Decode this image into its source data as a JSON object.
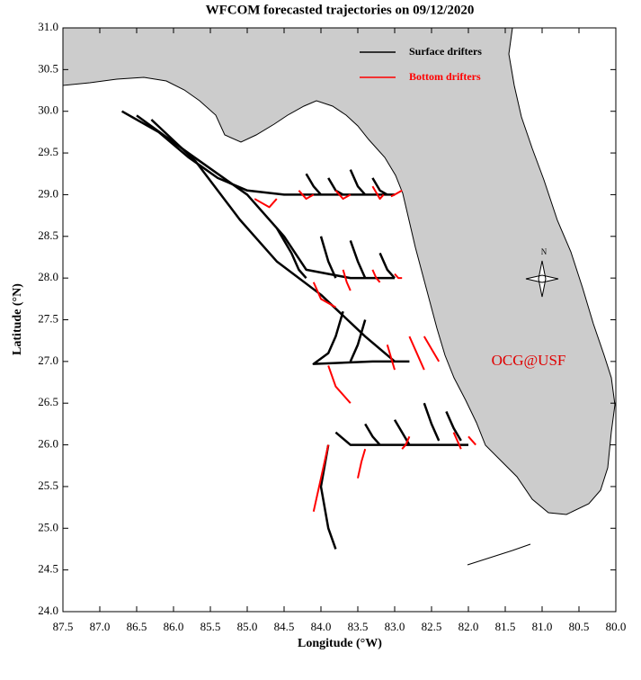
{
  "chart_data": {
    "type": "trajectory",
    "title": "WFCOM forecasted trajectories on 09/12/2020",
    "x_label": "Longitude (°W)",
    "y_label": "Latitude (°N)",
    "annotation": "OCG@USF",
    "compass_label": "N",
    "legend": "upper right",
    "xlim": [
      87.5,
      80.0
    ],
    "ylim": [
      24.0,
      31.0
    ],
    "xticks": [
      87.5,
      {
        "value": 87,
        "label": "87.0"
      },
      86.5,
      {
        "value": 86,
        "label": "86.0"
      },
      85.5,
      {
        "value": 85,
        "label": "85.0"
      },
      84.5,
      {
        "value": 84,
        "label": "84.0"
      },
      83.5,
      {
        "value": 83,
        "label": "83.0"
      },
      82.5,
      {
        "value": 82,
        "label": "82.0"
      },
      81.5,
      {
        "value": 81,
        "label": "81.0"
      },
      80.5,
      {
        "value": 80,
        "label": "80.0"
      }
    ],
    "yticks": [
      {
        "value": 24,
        "label": "24.0"
      },
      24.5,
      {
        "value": 25,
        "label": "25.0"
      },
      25.5,
      {
        "value": 26,
        "label": "26.0"
      },
      26.5,
      {
        "value": 27,
        "label": "27.0"
      },
      27.5,
      {
        "value": 28,
        "label": "28.0"
      },
      28.5,
      {
        "value": 29,
        "label": "29.0"
      },
      29.5,
      {
        "value": 30,
        "label": "30.0"
      },
      30.5,
      {
        "value": 31,
        "label": "31.0"
      }
    ],
    "series": [
      {
        "name": "Surface drifters",
        "color": "#000000",
        "tracks": [
          {
            "x": [
              86.7,
              86.2,
              85.8,
              85.4,
              85.0,
              84.5,
              84.0,
              83.5,
              83.0
            ],
            "y": [
              30.0,
              29.75,
              29.45,
              29.2,
              29.05,
              29.0,
              29.0,
              29.0,
              29.0
            ]
          },
          {
            "x": [
              86.5,
              85.8,
              85.0,
              84.5,
              84.2,
              83.6,
              83.0
            ],
            "y": [
              29.95,
              29.5,
              29.0,
              28.5,
              28.1,
              28.0,
              28.0
            ]
          },
          {
            "x": [
              86.3,
              85.7,
              85.1,
              84.6,
              84.0,
              83.4,
              83.0
            ],
            "y": [
              29.9,
              29.4,
              28.7,
              28.2,
              27.8,
              27.3,
              27.0
            ]
          },
          {
            "x": [
              84.2,
              84.1,
              84.0
            ],
            "y": [
              29.25,
              29.1,
              29.0
            ]
          },
          {
            "x": [
              83.9,
              83.8,
              83.7
            ],
            "y": [
              29.2,
              29.05,
              29.0
            ]
          },
          {
            "x": [
              83.6,
              83.5,
              83.4
            ],
            "y": [
              29.3,
              29.1,
              29.0
            ]
          },
          {
            "x": [
              83.3,
              83.2,
              83.1
            ],
            "y": [
              29.2,
              29.05,
              29.0
            ]
          },
          {
            "x": [
              84.6,
              84.4,
              84.3,
              84.2
            ],
            "y": [
              28.6,
              28.3,
              28.1,
              28.0
            ]
          },
          {
            "x": [
              84.0,
              83.9,
              83.8
            ],
            "y": [
              28.5,
              28.2,
              28.0
            ]
          },
          {
            "x": [
              83.6,
              83.5,
              83.4
            ],
            "y": [
              28.45,
              28.2,
              28.0
            ]
          },
          {
            "x": [
              83.2,
              83.1,
              83.0
            ],
            "y": [
              28.3,
              28.1,
              28.0
            ]
          },
          {
            "x": [
              83.7,
              83.8,
              83.9,
              84.1,
              83.3,
              82.8
            ],
            "y": [
              27.6,
              27.3,
              27.1,
              26.97,
              27.0,
              27.0
            ]
          },
          {
            "x": [
              83.4,
              83.5,
              83.6
            ],
            "y": [
              27.5,
              27.2,
              27.0
            ]
          },
          {
            "x": [
              83.8,
              83.6,
              83.2,
              82.8,
              82.5,
              82.0
            ],
            "y": [
              26.15,
              26.0,
              26.0,
              26.0,
              26.0,
              26.0
            ]
          },
          {
            "x": [
              83.4,
              83.3,
              83.2
            ],
            "y": [
              26.25,
              26.1,
              26.0
            ]
          },
          {
            "x": [
              83.0,
              82.9,
              82.8
            ],
            "y": [
              26.3,
              26.15,
              26.0
            ]
          },
          {
            "x": [
              82.6,
              82.5,
              82.4
            ],
            "y": [
              26.5,
              26.25,
              26.05
            ]
          },
          {
            "x": [
              82.3,
              82.2,
              82.1
            ],
            "y": [
              26.4,
              26.2,
              26.05
            ]
          },
          {
            "x": [
              83.9,
              84.0,
              83.9,
              83.8
            ],
            "y": [
              26.0,
              25.5,
              25.0,
              24.75
            ]
          }
        ]
      },
      {
        "name": "Bottom drifters",
        "color": "#ff0000",
        "tracks": [
          {
            "x": [
              84.9,
              84.7,
              84.6
            ],
            "y": [
              28.95,
              28.85,
              28.95
            ]
          },
          {
            "x": [
              84.3,
              84.2,
              84.1
            ],
            "y": [
              29.05,
              28.95,
              29.0
            ]
          },
          {
            "x": [
              83.8,
              83.7,
              83.6
            ],
            "y": [
              29.05,
              28.95,
              29.0
            ]
          },
          {
            "x": [
              83.3,
              83.2,
              83.15
            ],
            "y": [
              29.1,
              28.95,
              29.0
            ]
          },
          {
            "x": [
              82.9,
              83.0,
              83.05
            ],
            "y": [
              29.05,
              29.0,
              28.98
            ]
          },
          {
            "x": [
              84.1,
              84.0,
              83.8
            ],
            "y": [
              27.95,
              27.75,
              27.65
            ]
          },
          {
            "x": [
              83.7,
              83.65,
              83.6
            ],
            "y": [
              28.1,
              27.95,
              27.85
            ]
          },
          {
            "x": [
              83.3,
              83.25,
              83.2
            ],
            "y": [
              28.1,
              28.0,
              27.95
            ]
          },
          {
            "x": [
              83.0,
              82.95,
              82.9
            ],
            "y": [
              28.05,
              28.0,
              28.0
            ]
          },
          {
            "x": [
              83.9,
              83.8,
              83.6
            ],
            "y": [
              26.95,
              26.7,
              26.5
            ]
          },
          {
            "x": [
              83.1,
              83.05,
              83.0
            ],
            "y": [
              27.2,
              27.05,
              26.9
            ]
          },
          {
            "x": [
              82.8,
              82.7,
              82.6
            ],
            "y": [
              27.3,
              27.1,
              26.9
            ]
          },
          {
            "x": [
              82.6,
              82.5,
              82.4
            ],
            "y": [
              27.3,
              27.15,
              27.0
            ]
          },
          {
            "x": [
              83.9,
              84.0,
              84.1
            ],
            "y": [
              26.0,
              25.6,
              25.2
            ]
          },
          {
            "x": [
              83.4,
              83.45,
              83.5
            ],
            "y": [
              25.95,
              25.8,
              25.6
            ]
          },
          {
            "x": [
              82.8,
              82.85,
              82.9
            ],
            "y": [
              26.1,
              26.0,
              25.95
            ]
          },
          {
            "x": [
              82.2,
              82.15,
              82.1
            ],
            "y": [
              26.15,
              26.05,
              25.95
            ]
          },
          {
            "x": [
              82.0,
              81.95,
              81.9
            ],
            "y": [
              26.1,
              26.05,
              26.0
            ]
          }
        ]
      }
    ]
  }
}
